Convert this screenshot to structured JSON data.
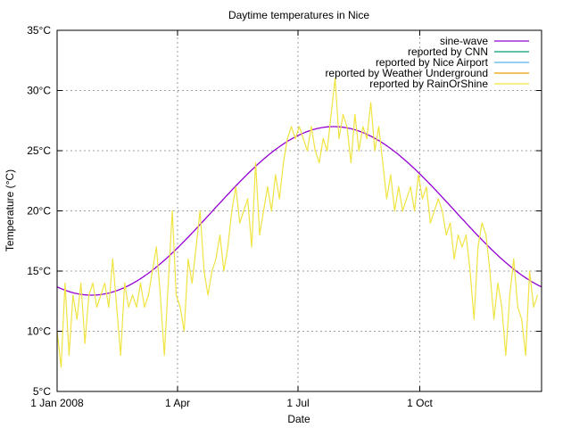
{
  "chart_data": {
    "type": "line",
    "title": "Daytime temperatures in Nice",
    "xlabel": "Date",
    "ylabel": "Temperature (°C)",
    "xlim": [
      "2008-01-01",
      "2009-01-01"
    ],
    "ylim": [
      5,
      35
    ],
    "grid": true,
    "legend_position": "top-right",
    "x_ticks": [
      {
        "date": "2008-01-01",
        "label": "1 Jan 2008"
      },
      {
        "date": "2008-04-01",
        "label": "1 Apr"
      },
      {
        "date": "2008-07-01",
        "label": "1 Jul"
      },
      {
        "date": "2008-10-01",
        "label": "1 Oct"
      }
    ],
    "y_ticks": [
      {
        "value": 5,
        "label": "5°C"
      },
      {
        "value": 10,
        "label": "10°C"
      },
      {
        "value": 15,
        "label": "15°C"
      },
      {
        "value": 20,
        "label": "20°C"
      },
      {
        "value": 25,
        "label": "25°C"
      },
      {
        "value": 30,
        "label": "30°C"
      },
      {
        "value": 35,
        "label": "35°C"
      }
    ],
    "series": [
      {
        "name": "sine-wave",
        "color": "#9400d3",
        "function": {
          "mean": 20,
          "amplitude": 7,
          "peak_date": "2008-07-28",
          "period_days": 366
        }
      },
      {
        "name": "reported by CNN",
        "color": "#009e73",
        "values": []
      },
      {
        "name": "reported by Nice Airport",
        "color": "#56b4e9",
        "values": []
      },
      {
        "name": "reported by Weather Underground",
        "color": "#e69f00",
        "values": []
      },
      {
        "name": "reported by RainOrShine",
        "color": "#f0e442",
        "x": [
          "2008-01-01",
          "2008-01-04",
          "2008-01-07",
          "2008-01-10",
          "2008-01-13",
          "2008-01-16",
          "2008-01-19",
          "2008-01-22",
          "2008-01-25",
          "2008-01-28",
          "2008-01-31",
          "2008-02-03",
          "2008-02-06",
          "2008-02-09",
          "2008-02-12",
          "2008-02-15",
          "2008-02-18",
          "2008-02-21",
          "2008-02-24",
          "2008-02-27",
          "2008-03-01",
          "2008-03-04",
          "2008-03-07",
          "2008-03-10",
          "2008-03-13",
          "2008-03-16",
          "2008-03-19",
          "2008-03-22",
          "2008-03-25",
          "2008-03-28",
          "2008-03-31",
          "2008-04-03",
          "2008-04-06",
          "2008-04-09",
          "2008-04-12",
          "2008-04-15",
          "2008-04-18",
          "2008-04-21",
          "2008-04-24",
          "2008-04-27",
          "2008-04-30",
          "2008-05-03",
          "2008-05-06",
          "2008-05-09",
          "2008-05-12",
          "2008-05-15",
          "2008-05-18",
          "2008-05-21",
          "2008-05-24",
          "2008-05-27",
          "2008-05-30",
          "2008-06-02",
          "2008-06-05",
          "2008-06-08",
          "2008-06-11",
          "2008-06-14",
          "2008-06-17",
          "2008-06-20",
          "2008-06-23",
          "2008-06-26",
          "2008-06-29",
          "2008-07-02",
          "2008-07-05",
          "2008-07-08",
          "2008-07-11",
          "2008-07-14",
          "2008-07-17",
          "2008-07-20",
          "2008-07-23",
          "2008-07-26",
          "2008-07-29",
          "2008-08-01",
          "2008-08-04",
          "2008-08-07",
          "2008-08-10",
          "2008-08-13",
          "2008-08-16",
          "2008-08-19",
          "2008-08-22",
          "2008-08-25",
          "2008-08-28",
          "2008-08-31",
          "2008-09-03",
          "2008-09-06",
          "2008-09-09",
          "2008-09-12",
          "2008-09-15",
          "2008-09-18",
          "2008-09-21",
          "2008-09-24",
          "2008-09-27",
          "2008-09-30",
          "2008-10-03",
          "2008-10-06",
          "2008-10-09",
          "2008-10-12",
          "2008-10-15",
          "2008-10-18",
          "2008-10-21",
          "2008-10-24",
          "2008-10-27",
          "2008-10-30",
          "2008-11-02",
          "2008-11-05",
          "2008-11-08",
          "2008-11-11",
          "2008-11-14",
          "2008-11-17",
          "2008-11-20",
          "2008-11-23",
          "2008-11-26",
          "2008-11-29",
          "2008-12-02",
          "2008-12-05",
          "2008-12-08",
          "2008-12-11",
          "2008-12-14",
          "2008-12-17",
          "2008-12-20",
          "2008-12-23",
          "2008-12-26",
          "2008-12-29"
        ],
        "values": [
          10,
          7,
          14,
          8,
          13,
          11,
          14,
          9,
          13,
          14,
          12,
          13,
          14,
          12,
          16,
          12,
          8,
          14,
          12,
          13,
          12,
          14,
          12,
          13,
          15,
          17,
          13,
          8,
          14,
          20,
          13,
          12,
          10,
          16,
          14,
          17,
          20,
          15,
          13,
          15,
          16,
          18,
          15,
          17,
          20,
          22,
          19,
          20,
          21,
          17,
          24,
          18,
          20,
          22,
          20,
          23,
          21,
          24,
          26,
          27,
          26,
          27,
          26,
          25,
          27,
          25,
          24,
          26,
          25,
          28,
          31,
          26,
          28,
          27,
          24,
          28,
          25,
          27,
          26,
          29,
          25,
          27,
          24,
          21,
          23,
          20,
          22,
          20,
          21,
          22,
          20,
          23,
          21,
          22,
          19,
          20,
          21,
          20,
          18,
          19,
          16,
          18,
          17,
          18,
          15,
          11,
          17,
          19,
          18,
          15,
          11,
          14,
          12,
          8,
          13,
          16,
          12,
          11,
          8,
          15,
          12,
          13
        ]
      }
    ]
  }
}
